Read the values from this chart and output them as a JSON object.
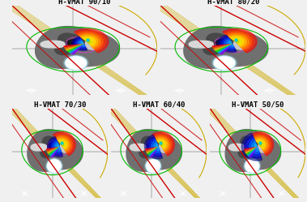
{
  "background_color": "#f0f0f0",
  "panel_bg": "#000000",
  "titles": [
    "H-VMAT 90/10",
    "H-VMAT 80/20",
    "H-VMAT 70/30",
    "H-VMAT 60/40",
    "H-VMAT 50/50"
  ],
  "title_fontsize": 6.5,
  "title_color": "#000000",
  "fig_width": 3.79,
  "fig_height": 2.49,
  "yellow_color": "#ccaa00",
  "red_color": "#cc0000",
  "green_color": "#00bb00",
  "magenta_color": "#cc44cc",
  "cyan_color": "#00cccc",
  "body_color": "#808080",
  "bone_color": "#cccccc",
  "bladder_color": "#e0ffff"
}
